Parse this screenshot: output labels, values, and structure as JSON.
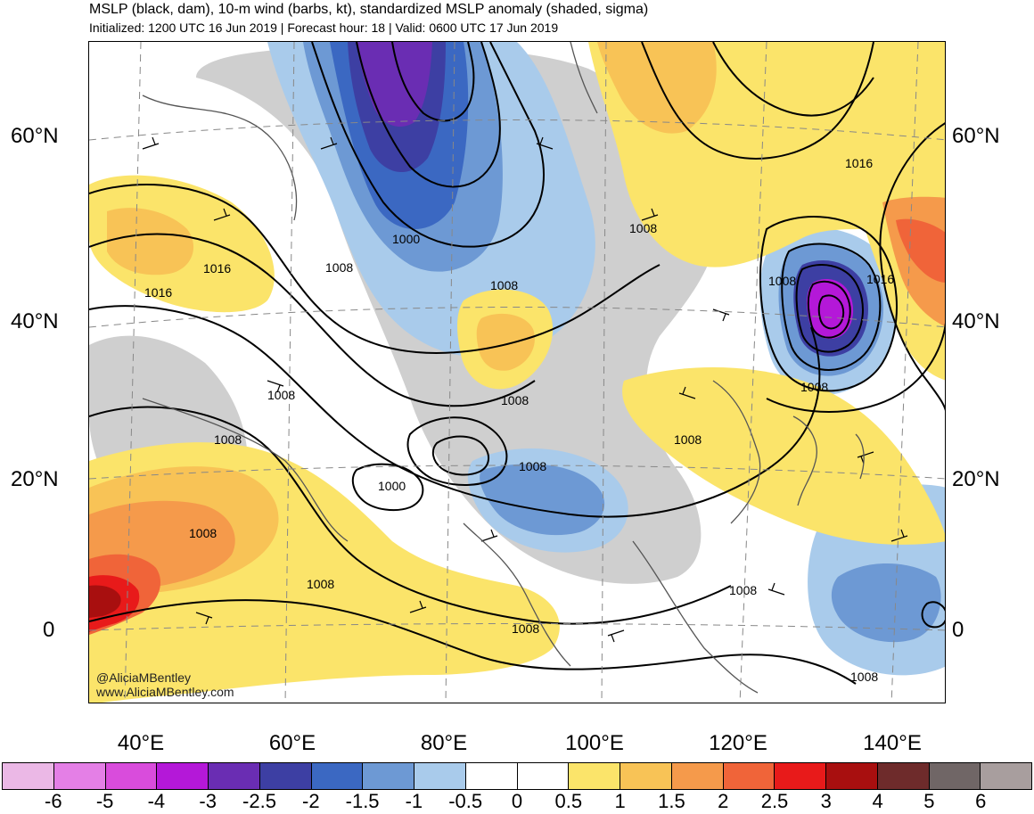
{
  "header": {
    "title": "MSLP (black, dam), 10-m wind (barbs, kt), standardized MSLP anomaly (shaded, sigma)",
    "subtitle": "Initialized: 1200 UTC 16 Jun 2019 | Forecast hour: 18 | Valid: 0600 UTC 17 Jun 2019"
  },
  "axes": {
    "lat_labels": [
      "60°N",
      "40°N",
      "20°N",
      "0"
    ],
    "lon_labels": [
      "40°E",
      "60°E",
      "80°E",
      "100°E",
      "120°E",
      "140°E"
    ]
  },
  "isobar_labels": [
    "1000",
    "1008",
    "1008",
    "1016",
    "1016",
    "1008",
    "1008",
    "1008",
    "1000",
    "1008",
    "1008",
    "1008",
    "1016",
    "1008",
    "1008",
    "1016",
    "1008",
    "1008",
    "1008",
    "1008",
    "1008"
  ],
  "watermark": {
    "line1": "@AliciaMBentley",
    "line2": "www.AliciaMBentley.com"
  },
  "colorbar": {
    "colors": [
      "#ebb8e6",
      "#e47fe6",
      "#d94cdc",
      "#b418d8",
      "#6a2db3",
      "#3d3fa3",
      "#3b68c2",
      "#6d99d4",
      "#a9cbeb",
      "#ffffff",
      "#ffffff",
      "#fbe46a",
      "#f8c356",
      "#f59a4b",
      "#f06439",
      "#e81a1a",
      "#a80f0f",
      "#6e2b2b",
      "#706666",
      "#a89e9e"
    ],
    "labels": [
      "-6",
      "-5",
      "-4",
      "-3",
      "-2.5",
      "-2",
      "-1.5",
      "-1",
      "-0.5",
      "0",
      "0.5",
      "1",
      "1.5",
      "2",
      "2.5",
      "3",
      "4",
      "5",
      "6"
    ]
  }
}
